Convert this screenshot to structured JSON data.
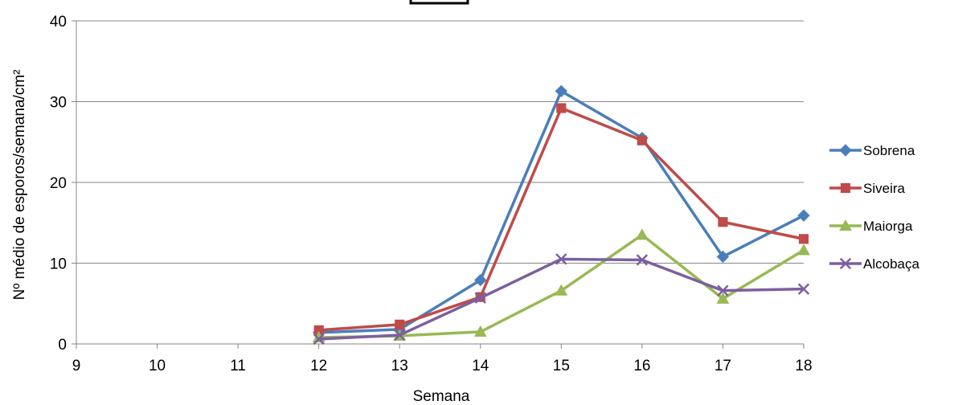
{
  "chart_data": {
    "type": "line",
    "title": "",
    "xlabel": "Semana",
    "ylabel": "Nº  médio de esporos/semana/cm²",
    "x": [
      9,
      10,
      11,
      12,
      13,
      14,
      15,
      16,
      17,
      18
    ],
    "xlim": [
      9,
      18
    ],
    "ylim": [
      0,
      40
    ],
    "yticks": [
      0,
      10,
      20,
      30,
      40
    ],
    "grid": "horizontal",
    "legend_position": "right",
    "series": [
      {
        "name": "Sobrena",
        "color": "#4a7ebb",
        "marker": "diamond",
        "points": [
          [
            12,
            1.4
          ],
          [
            13,
            1.8
          ],
          [
            14,
            7.9
          ],
          [
            15,
            31.3
          ],
          [
            16,
            25.5
          ],
          [
            17,
            10.8
          ],
          [
            18,
            15.9
          ]
        ]
      },
      {
        "name": "Siveira",
        "color": "#be4b48",
        "marker": "square",
        "points": [
          [
            12,
            1.7
          ],
          [
            13,
            2.4
          ],
          [
            14,
            5.8
          ],
          [
            15,
            29.2
          ],
          [
            16,
            25.2
          ],
          [
            17,
            15.1
          ],
          [
            18,
            13.0
          ]
        ]
      },
      {
        "name": "Maiorga",
        "color": "#98b954",
        "marker": "triangle",
        "points": [
          [
            12,
            0.8
          ],
          [
            13,
            1.0
          ],
          [
            14,
            1.5
          ],
          [
            15,
            6.6
          ],
          [
            16,
            13.5
          ],
          [
            17,
            5.6
          ],
          [
            18,
            11.6
          ]
        ]
      },
      {
        "name": "Alcobaça",
        "color": "#7d5fa0",
        "marker": "x",
        "points": [
          [
            12,
            0.6
          ],
          [
            13,
            1.1
          ],
          [
            14,
            5.7
          ],
          [
            15,
            10.5
          ],
          [
            16,
            10.4
          ],
          [
            17,
            6.6
          ],
          [
            18,
            6.8
          ]
        ]
      }
    ]
  }
}
